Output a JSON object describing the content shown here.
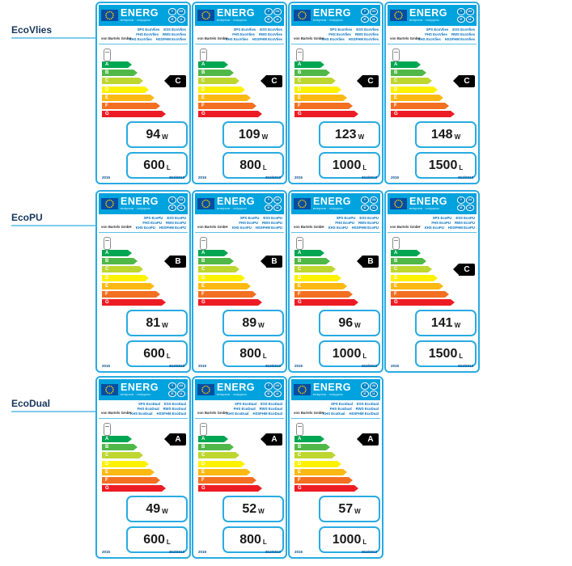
{
  "label_common": {
    "header_title": "ENERG",
    "header_subtitle": "енергия · ενέργεια",
    "badges": [
      "Y",
      "IJA",
      "IE",
      "IA"
    ],
    "brand": "von Bartels GmbH",
    "scale": [
      {
        "letter": "A",
        "color": "#00A651"
      },
      {
        "letter": "B",
        "color": "#50B848"
      },
      {
        "letter": "C",
        "color": "#BED630"
      },
      {
        "letter": "D",
        "color": "#FFF200"
      },
      {
        "letter": "E",
        "color": "#FDB913"
      },
      {
        "letter": "F",
        "color": "#F36F21"
      },
      {
        "letter": "G",
        "color": "#ED1C24"
      }
    ],
    "watt_unit": "W",
    "liter_unit": "L",
    "year": "2015",
    "regulation": "812/2013"
  },
  "colors": {
    "label_border": "#29ABE2",
    "header_bg": "#00A3DD",
    "flag_bg": "#034EA2",
    "star": "#FFCC00",
    "class_marker_bg": "#000000",
    "product_text": "#0070C0",
    "caption_text": "#17365D",
    "caption_line": "#7FCBEC",
    "footer_text": "#004B8D"
  },
  "board": {
    "rows": [
      {
        "name": "EcoVlies",
        "products": [
          [
            "SPS EcoVlies",
            "ESS EcoVlies"
          ],
          [
            "FHS EcoVlies",
            "RWS EcoVlies"
          ],
          [
            "KHS EcoVlies",
            "HSSFHM EcoVlies"
          ]
        ],
        "labels": [
          {
            "energy_class": "C",
            "watts": "94",
            "liters": "600"
          },
          {
            "energy_class": "C",
            "watts": "109",
            "liters": "800"
          },
          {
            "energy_class": "C",
            "watts": "123",
            "liters": "1000"
          },
          {
            "energy_class": "C",
            "watts": "148",
            "liters": "1500"
          }
        ]
      },
      {
        "name": "EcoPU",
        "products": [
          [
            "SPS EcoPU",
            "ESS EcoPU"
          ],
          [
            "FHS EcoPU",
            "RWS EcoPU"
          ],
          [
            "KHS EcoPU",
            "HSSFHM EcoPU"
          ]
        ],
        "labels": [
          {
            "energy_class": "B",
            "watts": "81",
            "liters": "600"
          },
          {
            "energy_class": "B",
            "watts": "89",
            "liters": "800"
          },
          {
            "energy_class": "B",
            "watts": "96",
            "liters": "1000"
          },
          {
            "energy_class": "C",
            "watts": "141",
            "liters": "1500"
          }
        ]
      },
      {
        "name": "EcoDual",
        "products": [
          [
            "SPS EcoDual",
            "ESS EcoDual"
          ],
          [
            "FHS EcoDual",
            "RWS EcoDual"
          ],
          [
            "KHS EcoDual",
            "HSSFHM EcoDual"
          ]
        ],
        "labels": [
          {
            "energy_class": "A",
            "watts": "49",
            "liters": "600"
          },
          {
            "energy_class": "A",
            "watts": "52",
            "liters": "800"
          },
          {
            "energy_class": "A",
            "watts": "57",
            "liters": "1000"
          }
        ]
      }
    ]
  }
}
